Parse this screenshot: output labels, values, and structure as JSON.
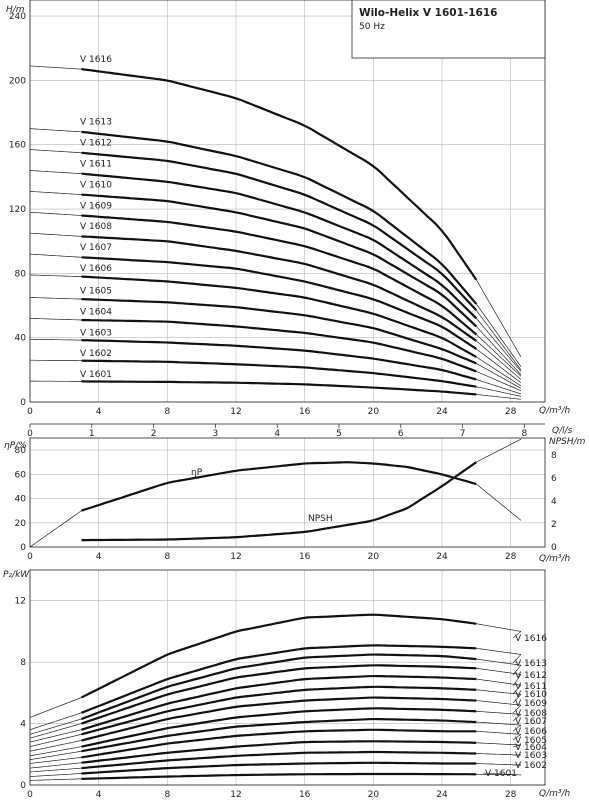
{
  "header": {
    "title": "Wilo-Helix V 1601-1616",
    "subtitle": "50 Hz"
  },
  "axes": {
    "h_label": "H/m",
    "q_label": "Q/m³/h",
    "qls_label": "Q/l/s",
    "eff_label": "ηP/%",
    "npsh_label": "NPSH/m",
    "p2_label": "P₂/kW",
    "q_ticks": [
      "0",
      "4",
      "8",
      "12",
      "16",
      "20",
      "24",
      "28"
    ],
    "qls_ticks": [
      "0",
      "1",
      "2",
      "3",
      "4",
      "5",
      "6",
      "7",
      "8"
    ],
    "h_ticks": [
      "0",
      "40",
      "80",
      "120",
      "160",
      "200",
      "240"
    ],
    "eff_ticks": [
      "0",
      "20",
      "40",
      "60",
      "80"
    ],
    "npsh_ticks": [
      "0",
      "2",
      "4",
      "6",
      "8"
    ],
    "p2_ticks": [
      "0",
      "4",
      "8",
      "12"
    ],
    "eff_curve_label": "ηP",
    "npsh_curve_label": "NPSH"
  },
  "chart_data": [
    {
      "type": "line",
      "title": "Wilo-Helix V 1601-1616",
      "subtitle": "50 Hz",
      "xlabel": "Q/m³/h",
      "ylabel": "H/m",
      "xlim": [
        0,
        30
      ],
      "ylim": [
        0,
        250
      ],
      "secondary_x": {
        "label": "Q/l/s",
        "range": [
          0,
          8.33
        ]
      },
      "grid": true,
      "series": [
        {
          "name": "V 1616",
          "shutoff": 209,
          "x": [
            0,
            3,
            8,
            12,
            16,
            20,
            24,
            26,
            28.6
          ],
          "y": [
            209,
            207,
            200,
            189,
            172,
            147,
            107,
            76,
            28
          ]
        },
        {
          "name": "V 1613",
          "shutoff": 170,
          "x": [
            0,
            3,
            8,
            12,
            16,
            20,
            24,
            26,
            28.6
          ],
          "y": [
            170,
            168,
            162,
            153,
            140,
            119,
            86,
            61,
            22
          ]
        },
        {
          "name": "V 1612",
          "shutoff": 157,
          "x": [
            0,
            3,
            8,
            12,
            16,
            20,
            24,
            26,
            28.6
          ],
          "y": [
            157,
            155,
            150,
            142,
            129,
            110,
            80,
            57,
            20
          ]
        },
        {
          "name": "V 1611",
          "shutoff": 144,
          "x": [
            0,
            3,
            8,
            12,
            16,
            20,
            24,
            26,
            28.6
          ],
          "y": [
            144,
            142,
            137,
            130,
            118,
            101,
            73,
            52,
            19
          ]
        },
        {
          "name": "V 1610",
          "shutoff": 131,
          "x": [
            0,
            3,
            8,
            12,
            16,
            20,
            24,
            26,
            28.6
          ],
          "y": [
            131,
            129,
            125,
            118,
            108,
            92,
            67,
            47,
            17
          ]
        },
        {
          "name": "V 1609",
          "shutoff": 118,
          "x": [
            0,
            3,
            8,
            12,
            16,
            20,
            24,
            26,
            28.6
          ],
          "y": [
            118,
            116,
            112,
            106,
            97,
            83,
            60,
            42,
            16
          ]
        },
        {
          "name": "V 1608",
          "shutoff": 105,
          "x": [
            0,
            3,
            8,
            12,
            16,
            20,
            24,
            26,
            28.6
          ],
          "y": [
            105,
            103,
            100,
            94,
            86,
            73,
            53,
            38,
            14
          ]
        },
        {
          "name": "V 1607",
          "shutoff": 92,
          "x": [
            0,
            3,
            8,
            12,
            16,
            20,
            24,
            26,
            28.6
          ],
          "y": [
            92,
            90,
            87,
            83,
            75,
            64,
            47,
            33,
            12
          ]
        },
        {
          "name": "V 1606",
          "shutoff": 79,
          "x": [
            0,
            3,
            8,
            12,
            16,
            20,
            24,
            26,
            28.6
          ],
          "y": [
            79,
            78,
            75,
            71,
            65,
            55,
            40,
            28,
            10
          ]
        },
        {
          "name": "V 1605",
          "shutoff": 65,
          "x": [
            0,
            3,
            8,
            12,
            16,
            20,
            24,
            26,
            28.6
          ],
          "y": [
            65,
            64,
            62,
            59,
            54,
            46,
            33,
            24,
            8.5
          ]
        },
        {
          "name": "V 1604",
          "shutoff": 52,
          "x": [
            0,
            3,
            8,
            12,
            16,
            20,
            24,
            26,
            28.6
          ],
          "y": [
            52,
            51,
            50,
            47,
            43,
            37,
            27,
            19,
            7
          ]
        },
        {
          "name": "V 1603",
          "shutoff": 39,
          "x": [
            0,
            3,
            8,
            12,
            16,
            20,
            24,
            26,
            28.6
          ],
          "y": [
            39,
            38.5,
            37,
            35,
            32,
            27,
            20,
            14,
            5
          ]
        },
        {
          "name": "V 1602",
          "shutoff": 26,
          "x": [
            0,
            3,
            8,
            12,
            16,
            20,
            24,
            26,
            28.6
          ],
          "y": [
            26,
            25.7,
            25,
            23.5,
            21.5,
            18,
            13,
            9.5,
            3.5
          ]
        },
        {
          "name": "V 1601",
          "shutoff": 13,
          "x": [
            0,
            3,
            8,
            12,
            16,
            20,
            24,
            26,
            28.6
          ],
          "y": [
            13,
            12.8,
            12.5,
            12,
            11,
            9,
            6.5,
            4.7,
            1.7
          ]
        }
      ]
    },
    {
      "type": "line",
      "xlabel": "Q/m³/h",
      "ylabel": "ηP/%",
      "y2label": "NPSH/m",
      "xlim": [
        0,
        30
      ],
      "ylim": [
        0,
        90
      ],
      "y2lim": [
        0,
        9.5
      ],
      "grid": true,
      "series": [
        {
          "name": "ηP",
          "axis": "left",
          "x": [
            0,
            3,
            8,
            12,
            16,
            18.5,
            20,
            22,
            24,
            26,
            28.6
          ],
          "y": [
            0,
            30,
            53,
            63,
            69,
            70,
            69,
            66,
            60,
            52,
            22
          ]
        },
        {
          "name": "NPSH",
          "axis": "right",
          "x": [
            3,
            8,
            12,
            16,
            20,
            22,
            24,
            26,
            28.6
          ],
          "y": [
            0.6,
            0.65,
            0.85,
            1.3,
            2.3,
            3.4,
            5.3,
            7.4,
            9.4
          ]
        }
      ]
    },
    {
      "type": "line",
      "xlabel": "Q/m³/h",
      "ylabel": "P₂/kW",
      "xlim": [
        0,
        30
      ],
      "ylim": [
        0,
        14
      ],
      "grid": true,
      "series": [
        {
          "name": "V 1616",
          "x": [
            0,
            3,
            8,
            12,
            16,
            20,
            24,
            26,
            28.6
          ],
          "y": [
            4.4,
            5.7,
            8.5,
            10,
            10.9,
            11.1,
            10.8,
            10.5,
            10.0
          ]
        },
        {
          "name": "V 1613",
          "x": [
            0,
            3,
            8,
            12,
            16,
            20,
            24,
            26,
            28.6
          ],
          "y": [
            3.6,
            4.7,
            6.9,
            8.2,
            8.9,
            9.1,
            9.0,
            8.9,
            8.5
          ]
        },
        {
          "name": "V 1612",
          "x": [
            0,
            3,
            8,
            12,
            16,
            20,
            24,
            26,
            28.6
          ],
          "y": [
            3.3,
            4.3,
            6.4,
            7.6,
            8.3,
            8.5,
            8.4,
            8.2,
            7.8
          ]
        },
        {
          "name": "V 1611",
          "x": [
            0,
            3,
            8,
            12,
            16,
            20,
            24,
            26,
            28.6
          ],
          "y": [
            3.05,
            4.0,
            5.9,
            7.0,
            7.6,
            7.8,
            7.7,
            7.6,
            7.2
          ]
        },
        {
          "name": "V 1610",
          "x": [
            0,
            3,
            8,
            12,
            16,
            20,
            24,
            26,
            28.6
          ],
          "y": [
            2.8,
            3.6,
            5.3,
            6.3,
            6.9,
            7.1,
            7.0,
            6.9,
            6.5
          ]
        },
        {
          "name": "V 1609",
          "x": [
            0,
            3,
            8,
            12,
            16,
            20,
            24,
            26,
            28.6
          ],
          "y": [
            2.5,
            3.3,
            4.8,
            5.7,
            6.2,
            6.4,
            6.3,
            6.2,
            5.9
          ]
        },
        {
          "name": "V 1608",
          "x": [
            0,
            3,
            8,
            12,
            16,
            20,
            24,
            26,
            28.6
          ],
          "y": [
            2.2,
            2.9,
            4.3,
            5.1,
            5.5,
            5.7,
            5.6,
            5.5,
            5.2
          ]
        },
        {
          "name": "V 1607",
          "x": [
            0,
            3,
            8,
            12,
            16,
            20,
            24,
            26,
            28.6
          ],
          "y": [
            1.9,
            2.5,
            3.7,
            4.4,
            4.8,
            5.0,
            4.9,
            4.8,
            4.6
          ]
        },
        {
          "name": "V 1606",
          "x": [
            0,
            3,
            8,
            12,
            16,
            20,
            24,
            26,
            28.6
          ],
          "y": [
            1.65,
            2.2,
            3.2,
            3.8,
            4.1,
            4.3,
            4.2,
            4.1,
            3.9
          ]
        },
        {
          "name": "V 1605",
          "x": [
            0,
            3,
            8,
            12,
            16,
            20,
            24,
            26,
            28.6
          ],
          "y": [
            1.4,
            1.8,
            2.7,
            3.2,
            3.5,
            3.6,
            3.5,
            3.5,
            3.3
          ]
        },
        {
          "name": "V 1604",
          "x": [
            0,
            3,
            8,
            12,
            16,
            20,
            24,
            26,
            28.6
          ],
          "y": [
            1.1,
            1.45,
            2.1,
            2.5,
            2.8,
            2.85,
            2.8,
            2.75,
            2.6
          ]
        },
        {
          "name": "V 1603",
          "x": [
            0,
            3,
            8,
            12,
            16,
            20,
            24,
            26,
            28.6
          ],
          "y": [
            0.85,
            1.1,
            1.6,
            1.9,
            2.1,
            2.15,
            2.1,
            2.05,
            1.95
          ]
        },
        {
          "name": "V 1602",
          "x": [
            0,
            3,
            8,
            12,
            16,
            20,
            24,
            26,
            28.6
          ],
          "y": [
            0.55,
            0.75,
            1.1,
            1.3,
            1.4,
            1.45,
            1.4,
            1.4,
            1.3
          ]
        },
        {
          "name": "V 1601",
          "x": [
            0,
            3,
            8,
            12,
            16,
            20,
            24,
            26,
            28.6
          ],
          "y": [
            0.3,
            0.4,
            0.55,
            0.65,
            0.7,
            0.72,
            0.71,
            0.7,
            0.66
          ]
        }
      ]
    }
  ]
}
